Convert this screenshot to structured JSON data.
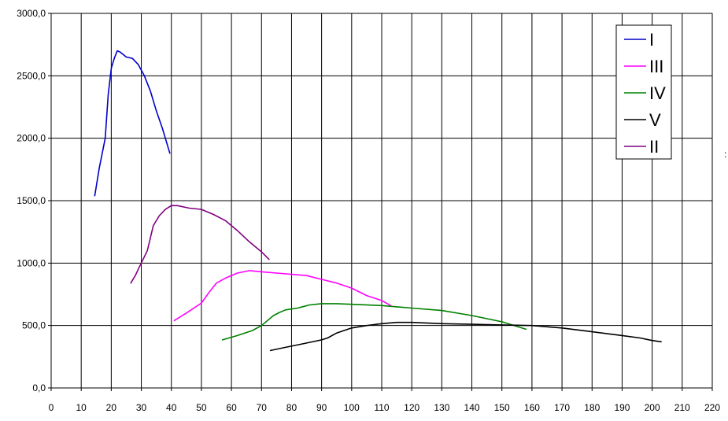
{
  "chart_data": {
    "type": "line",
    "title": "",
    "xlabel": "",
    "ylabel": "",
    "xlim": [
      0,
      220
    ],
    "ylim": [
      0,
      3000
    ],
    "x_ticks": [
      "0",
      "10",
      "20",
      "30",
      "40",
      "50",
      "60",
      "70",
      "80",
      "90",
      "100",
      "110",
      "120",
      "130",
      "140",
      "150",
      "160",
      "170",
      "180",
      "190",
      "200",
      "210",
      "220"
    ],
    "y_ticks": [
      "0,0",
      "500,0",
      "1000,0",
      "1500,0",
      "2000,0",
      "2500,0",
      "3000,0"
    ],
    "grid": true,
    "legend_position": "top-right",
    "series": [
      {
        "name": "I",
        "color": "#0000c8",
        "x": [
          14.5,
          16,
          18,
          19,
          20,
          21,
          22,
          23,
          25,
          27,
          29,
          31,
          33,
          35,
          37,
          39.5
        ],
        "y": [
          1540,
          1760,
          2000,
          2350,
          2560,
          2640,
          2700,
          2690,
          2650,
          2640,
          2590,
          2500,
          2380,
          2220,
          2080,
          1880
        ]
      },
      {
        "name": "III",
        "color": "#ff00ff",
        "x": [
          41,
          45,
          50,
          53,
          55,
          58,
          62,
          66,
          70,
          75,
          80,
          85,
          90,
          95,
          100,
          105,
          110,
          113
        ],
        "y": [
          540,
          600,
          680,
          780,
          840,
          880,
          920,
          940,
          930,
          920,
          910,
          900,
          870,
          840,
          800,
          740,
          700,
          660
        ]
      },
      {
        "name": "IV",
        "color": "#008000",
        "x": [
          57,
          62,
          67,
          70,
          72,
          74,
          76,
          78,
          82,
          86,
          90,
          95,
          100,
          110,
          120,
          130,
          140,
          150,
          158
        ],
        "y": [
          385,
          420,
          460,
          500,
          540,
          580,
          605,
          625,
          640,
          665,
          675,
          675,
          670,
          660,
          640,
          620,
          580,
          530,
          470
        ]
      },
      {
        "name": "V",
        "color": "#000000",
        "x": [
          73,
          78,
          83,
          88,
          90,
          92,
          95,
          100,
          105,
          110,
          115,
          120,
          130,
          140,
          150,
          160,
          170,
          180,
          190,
          196,
          200,
          203
        ],
        "y": [
          300,
          325,
          350,
          375,
          385,
          400,
          440,
          480,
          500,
          515,
          525,
          525,
          515,
          510,
          505,
          500,
          480,
          450,
          420,
          400,
          380,
          370
        ]
      },
      {
        "name": "II",
        "color": "#800080",
        "x": [
          26.5,
          28,
          30,
          32,
          34,
          36,
          38,
          40,
          42,
          46,
          50,
          54,
          58,
          62,
          66,
          70,
          72.5
        ],
        "y": [
          840,
          900,
          1000,
          1100,
          1300,
          1380,
          1430,
          1460,
          1460,
          1440,
          1430,
          1390,
          1340,
          1260,
          1170,
          1090,
          1030
        ]
      }
    ]
  },
  "stray_mark": ":"
}
